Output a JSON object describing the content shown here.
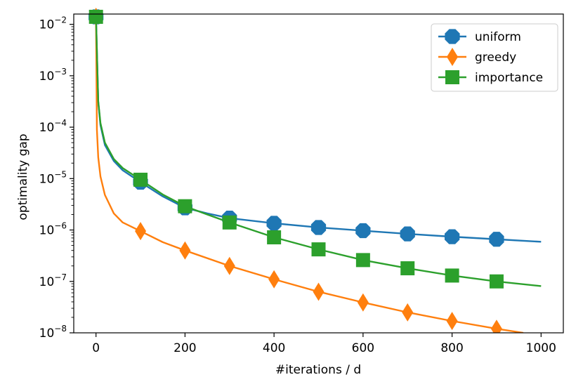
{
  "chart_data": {
    "type": "line",
    "xlabel": "#iterations / d",
    "ylabel": "optimality gap",
    "xlim": [
      -50,
      1050
    ],
    "ylim_log10": [
      -8,
      -1.8
    ],
    "x_ticks": [
      0,
      200,
      400,
      600,
      800,
      1000
    ],
    "x_tick_labels": [
      "0",
      "200",
      "400",
      "600",
      "800",
      "1000"
    ],
    "y_ticks_exp": [
      -8,
      -7,
      -6,
      -5,
      -4,
      -3,
      -2
    ],
    "y_tick_labels": [
      {
        "base": "10",
        "exp": "−8"
      },
      {
        "base": "10",
        "exp": "−7"
      },
      {
        "base": "10",
        "exp": "−6"
      },
      {
        "base": "10",
        "exp": "−5"
      },
      {
        "base": "10",
        "exp": "−4"
      },
      {
        "base": "10",
        "exp": "−3"
      },
      {
        "base": "10",
        "exp": "−2"
      }
    ],
    "legend_position": "top-right",
    "series": [
      {
        "name": "uniform",
        "color": "#1f77b4",
        "marker": "octagon",
        "x": [
          0,
          5,
          10,
          20,
          40,
          60,
          100,
          150,
          200,
          250,
          300,
          400,
          500,
          600,
          700,
          800,
          900,
          1000
        ],
        "y": [
          0.014,
          0.00031,
          0.00011,
          4.5e-05,
          2.2e-05,
          1.45e-05,
          8.5e-06,
          4.5e-06,
          2.7e-06,
          2.1e-06,
          1.7e-06,
          1.35e-06,
          1.12e-06,
          9.7e-07,
          8.4e-07,
          7.4e-07,
          6.6e-07,
          5.9e-07
        ],
        "marker_x": [
          0,
          100,
          200,
          300,
          400,
          500,
          600,
          700,
          800,
          900
        ]
      },
      {
        "name": "greedy",
        "color": "#ff7f0e",
        "marker": "diamond",
        "x": [
          0,
          2,
          5,
          10,
          20,
          40,
          60,
          100,
          150,
          200,
          300,
          400,
          500,
          600,
          700,
          800,
          900,
          960
        ],
        "y": [
          0.014,
          9e-05,
          2.6e-05,
          1.1e-05,
          4.8e-06,
          2.1e-06,
          1.4e-06,
          9.5e-07,
          5.8e-07,
          4e-07,
          2e-07,
          1.1e-07,
          6.3e-08,
          3.9e-08,
          2.5e-08,
          1.7e-08,
          1.2e-08,
          1e-08
        ],
        "marker_x": [
          0,
          100,
          200,
          300,
          400,
          500,
          600,
          700,
          800,
          900
        ]
      },
      {
        "name": "importance",
        "color": "#2ca02c",
        "marker": "square",
        "x": [
          0,
          5,
          10,
          20,
          40,
          60,
          100,
          150,
          200,
          250,
          300,
          400,
          500,
          600,
          700,
          800,
          900,
          1000
        ],
        "y": [
          0.014,
          0.00032,
          0.00012,
          5e-05,
          2.4e-05,
          1.6e-05,
          9.5e-06,
          4.9e-06,
          2.9e-06,
          2e-06,
          1.4e-06,
          7.2e-07,
          4.2e-07,
          2.6e-07,
          1.8e-07,
          1.3e-07,
          1e-07,
          8.1e-08
        ],
        "marker_x": [
          0,
          100,
          200,
          300,
          400,
          500,
          600,
          700,
          800,
          900
        ]
      }
    ]
  }
}
